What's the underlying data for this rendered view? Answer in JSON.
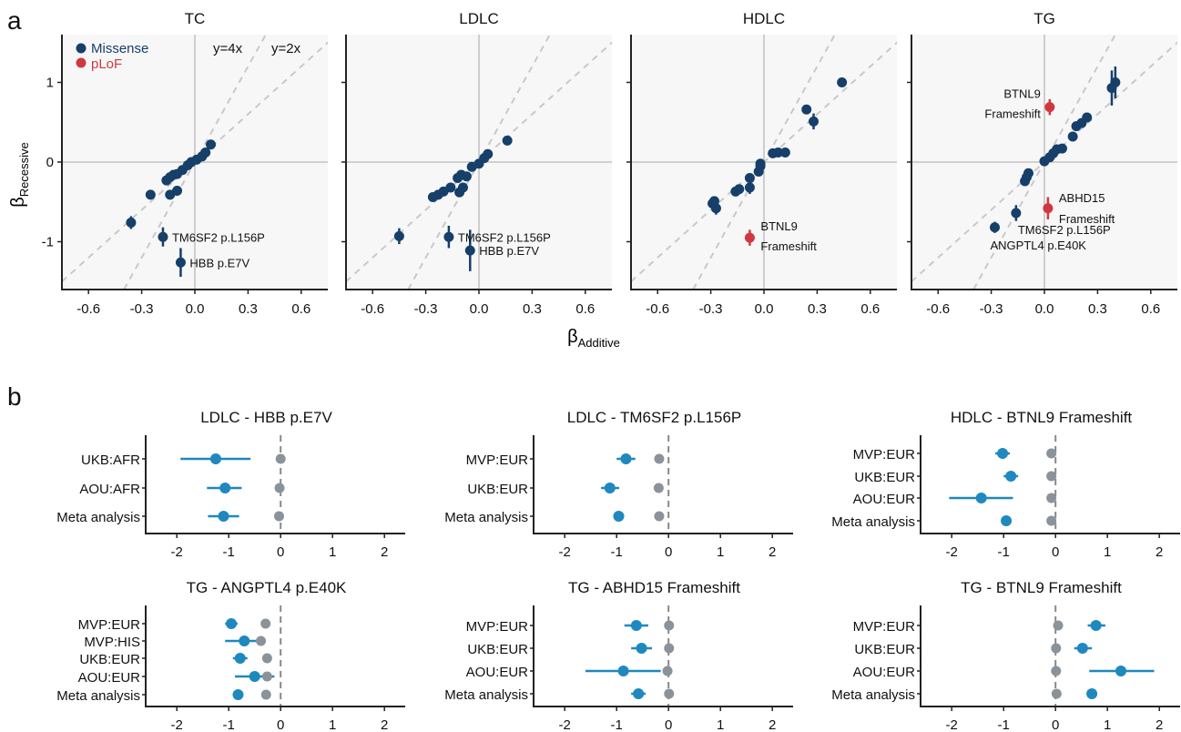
{
  "figure": {
    "panel_a_letter": "a",
    "panel_b_letter": "b",
    "x_label_main": "β",
    "x_label_sub": "Additive",
    "y_label_main": "β",
    "y_label_sub": "Recessive",
    "legend": {
      "items": [
        {
          "label": "Missense",
          "color": "#163f6a"
        },
        {
          "label": "pLoF",
          "color": "#d0383f"
        }
      ],
      "reference_lines": [
        "y=4x",
        "y=2x"
      ]
    }
  },
  "chart_data": [
    {
      "type": "scatter",
      "title": "TC",
      "xlim": [
        -0.75,
        0.75
      ],
      "ylim": [
        -1.6,
        1.6
      ],
      "xticks": [
        -0.6,
        -0.3,
        0.0,
        0.3,
        0.6
      ],
      "xtick_labels": [
        "-0.6",
        "-0.3",
        "0.0",
        "0.3",
        "0.6"
      ],
      "yticks": [
        -1,
        0,
        1
      ],
      "ytick_labels": [
        "-1",
        "0",
        "1"
      ],
      "reference_lines": [
        {
          "label": "y=4x",
          "slope": 4
        },
        {
          "label": "y=2x",
          "slope": 2
        }
      ],
      "points": [
        {
          "x": -0.36,
          "y": -0.76,
          "err": 0.08,
          "class": "Missense"
        },
        {
          "x": -0.18,
          "y": -0.94,
          "err": 0.12,
          "class": "Missense",
          "label": "TM6SF2 p.L156P"
        },
        {
          "x": -0.08,
          "y": -1.26,
          "err": 0.18,
          "class": "Missense",
          "label": "HBB p.E7V"
        },
        {
          "x": -0.25,
          "y": -0.41,
          "err": 0.04,
          "class": "Missense"
        },
        {
          "x": -0.14,
          "y": -0.41,
          "err": 0.06,
          "class": "Missense"
        },
        {
          "x": -0.1,
          "y": -0.36,
          "err": 0.05,
          "class": "Missense"
        },
        {
          "x": -0.16,
          "y": -0.23,
          "err": 0.04,
          "class": "Missense"
        },
        {
          "x": -0.14,
          "y": -0.19,
          "err": 0.04,
          "class": "Missense"
        },
        {
          "x": -0.12,
          "y": -0.16,
          "err": 0.04,
          "class": "Missense"
        },
        {
          "x": -0.1,
          "y": -0.15,
          "err": 0.04,
          "class": "Missense"
        },
        {
          "x": -0.07,
          "y": -0.1,
          "err": 0.03,
          "class": "Missense"
        },
        {
          "x": -0.04,
          "y": -0.04,
          "err": 0.03,
          "class": "Missense"
        },
        {
          "x": -0.02,
          "y": 0.0,
          "err": 0.02,
          "class": "Missense"
        },
        {
          "x": 0.01,
          "y": 0.03,
          "err": 0.02,
          "class": "Missense"
        },
        {
          "x": 0.04,
          "y": 0.07,
          "err": 0.03,
          "class": "Missense"
        },
        {
          "x": 0.06,
          "y": 0.12,
          "err": 0.04,
          "class": "Missense"
        },
        {
          "x": 0.09,
          "y": 0.22,
          "err": 0.04,
          "class": "Missense"
        }
      ]
    },
    {
      "type": "scatter",
      "title": "LDLC",
      "xlim": [
        -0.75,
        0.75
      ],
      "ylim": [
        -1.6,
        1.6
      ],
      "xticks": [
        -0.6,
        -0.3,
        0.0,
        0.3,
        0.6
      ],
      "xtick_labels": [
        "-0.6",
        "-0.3",
        "0.0",
        "0.3",
        "0.6"
      ],
      "yticks": [
        -1,
        0,
        1
      ],
      "ytick_labels": [
        "-1",
        "0",
        "1"
      ],
      "reference_lines": [
        {
          "slope": 4
        },
        {
          "slope": 2
        }
      ],
      "points": [
        {
          "x": -0.45,
          "y": -0.93,
          "err": 0.1,
          "class": "Missense"
        },
        {
          "x": -0.17,
          "y": -0.94,
          "err": 0.14,
          "class": "Missense",
          "label": "TM6SF2 p.L156P"
        },
        {
          "x": -0.05,
          "y": -1.11,
          "err": 0.26,
          "class": "Missense",
          "label": "HBB p.E7V"
        },
        {
          "x": -0.26,
          "y": -0.44,
          "err": 0.04,
          "class": "Missense"
        },
        {
          "x": -0.23,
          "y": -0.41,
          "err": 0.04,
          "class": "Missense"
        },
        {
          "x": -0.2,
          "y": -0.37,
          "err": 0.04,
          "class": "Missense"
        },
        {
          "x": -0.16,
          "y": -0.32,
          "err": 0.05,
          "class": "Missense"
        },
        {
          "x": -0.11,
          "y": -0.38,
          "err": 0.06,
          "class": "Missense"
        },
        {
          "x": -0.09,
          "y": -0.32,
          "err": 0.05,
          "class": "Missense"
        },
        {
          "x": -0.12,
          "y": -0.2,
          "err": 0.04,
          "class": "Missense"
        },
        {
          "x": -0.1,
          "y": -0.16,
          "err": 0.04,
          "class": "Missense"
        },
        {
          "x": -0.07,
          "y": -0.18,
          "err": 0.04,
          "class": "Missense"
        },
        {
          "x": -0.04,
          "y": -0.06,
          "err": 0.03,
          "class": "Missense"
        },
        {
          "x": 0.0,
          "y": -0.02,
          "err": 0.03,
          "class": "Missense"
        },
        {
          "x": 0.03,
          "y": 0.05,
          "err": 0.03,
          "class": "Missense"
        },
        {
          "x": 0.05,
          "y": 0.1,
          "err": 0.03,
          "class": "Missense"
        },
        {
          "x": 0.16,
          "y": 0.27,
          "err": 0.06,
          "class": "Missense"
        }
      ]
    },
    {
      "type": "scatter",
      "title": "HDLC",
      "xlim": [
        -0.75,
        0.75
      ],
      "ylim": [
        -1.6,
        1.6
      ],
      "xticks": [
        -0.6,
        -0.3,
        0.0,
        0.3,
        0.6
      ],
      "xtick_labels": [
        "-0.6",
        "-0.3",
        "0.0",
        "0.3",
        "0.6"
      ],
      "yticks": [
        -1,
        0,
        1
      ],
      "ytick_labels": [
        "-1",
        "0",
        "1"
      ],
      "reference_lines": [
        {
          "slope": 4
        },
        {
          "slope": 2
        }
      ],
      "points": [
        {
          "x": -0.08,
          "y": -0.95,
          "err": 0.1,
          "class": "pLoF",
          "label": "BTNL9 Frameshift"
        },
        {
          "x": -0.29,
          "y": -0.52,
          "err": 0.06,
          "class": "Missense"
        },
        {
          "x": -0.27,
          "y": -0.58,
          "err": 0.08,
          "class": "Missense"
        },
        {
          "x": -0.28,
          "y": -0.49,
          "err": 0.05,
          "class": "Missense"
        },
        {
          "x": -0.16,
          "y": -0.37,
          "err": 0.05,
          "class": "Missense"
        },
        {
          "x": -0.14,
          "y": -0.34,
          "err": 0.05,
          "class": "Missense"
        },
        {
          "x": -0.08,
          "y": -0.32,
          "err": 0.08,
          "class": "Missense"
        },
        {
          "x": -0.08,
          "y": -0.2,
          "err": 0.04,
          "class": "Missense"
        },
        {
          "x": -0.03,
          "y": -0.12,
          "err": 0.05,
          "class": "Missense"
        },
        {
          "x": -0.02,
          "y": -0.05,
          "err": 0.03,
          "class": "Missense"
        },
        {
          "x": -0.02,
          "y": -0.02,
          "err": 0.03,
          "class": "Missense"
        },
        {
          "x": 0.05,
          "y": 0.11,
          "err": 0.03,
          "class": "Missense"
        },
        {
          "x": 0.08,
          "y": 0.12,
          "err": 0.03,
          "class": "Missense"
        },
        {
          "x": 0.12,
          "y": 0.12,
          "err": 0.03,
          "class": "Missense"
        },
        {
          "x": 0.24,
          "y": 0.66,
          "err": 0.06,
          "class": "Missense"
        },
        {
          "x": 0.28,
          "y": 0.51,
          "err": 0.1,
          "class": "Missense"
        },
        {
          "x": 0.44,
          "y": 1.0,
          "err": 0.04,
          "class": "Missense"
        }
      ]
    },
    {
      "type": "scatter",
      "title": "TG",
      "xlim": [
        -0.75,
        0.75
      ],
      "ylim": [
        -1.6,
        1.6
      ],
      "xticks": [
        -0.6,
        -0.3,
        0.0,
        0.3,
        0.6
      ],
      "xtick_labels": [
        "-0.6",
        "-0.3",
        "0.0",
        "0.3",
        "0.6"
      ],
      "yticks": [
        -1,
        0,
        1
      ],
      "ytick_labels": [
        "-1",
        "0",
        "1"
      ],
      "reference_lines": [
        {
          "slope": 4
        },
        {
          "slope": 2
        }
      ],
      "points": [
        {
          "x": 0.03,
          "y": 0.69,
          "err": 0.1,
          "class": "pLoF",
          "label": "BTNL9 Frameshift"
        },
        {
          "x": 0.02,
          "y": -0.58,
          "err": 0.14,
          "class": "pLoF",
          "label": "ABHD15 Frameshift"
        },
        {
          "x": -0.16,
          "y": -0.64,
          "err": 0.1,
          "class": "Missense",
          "label": "TM6SF2 p.L156P"
        },
        {
          "x": -0.28,
          "y": -0.82,
          "err": 0.07,
          "class": "Missense",
          "label": "ANGPTL4 p.E40K"
        },
        {
          "x": -0.11,
          "y": -0.24,
          "err": 0.05,
          "class": "Missense"
        },
        {
          "x": -0.1,
          "y": -0.19,
          "err": 0.05,
          "class": "Missense"
        },
        {
          "x": -0.09,
          "y": -0.14,
          "err": 0.05,
          "class": "Missense"
        },
        {
          "x": 0.0,
          "y": 0.01,
          "err": 0.03,
          "class": "Missense"
        },
        {
          "x": 0.03,
          "y": 0.06,
          "err": 0.03,
          "class": "Missense"
        },
        {
          "x": 0.05,
          "y": 0.11,
          "err": 0.03,
          "class": "Missense"
        },
        {
          "x": 0.07,
          "y": 0.16,
          "err": 0.04,
          "class": "Missense"
        },
        {
          "x": 0.1,
          "y": 0.17,
          "err": 0.04,
          "class": "Missense"
        },
        {
          "x": 0.16,
          "y": 0.32,
          "err": 0.05,
          "class": "Missense"
        },
        {
          "x": 0.18,
          "y": 0.45,
          "err": 0.05,
          "class": "Missense"
        },
        {
          "x": 0.21,
          "y": 0.49,
          "err": 0.05,
          "class": "Missense"
        },
        {
          "x": 0.24,
          "y": 0.56,
          "err": 0.05,
          "class": "Missense"
        },
        {
          "x": 0.38,
          "y": 0.93,
          "err": 0.22,
          "class": "Missense"
        },
        {
          "x": 0.4,
          "y": 1.0,
          "err": 0.2,
          "class": "Missense"
        }
      ]
    },
    {
      "type": "forest",
      "title": "LDLC - HBB p.E7V",
      "xlim": [
        -2.6,
        2.4
      ],
      "xticks": [
        -2,
        -1,
        0,
        1,
        2
      ],
      "xtick_labels": [
        "-2",
        "-1",
        "0",
        "1",
        "2"
      ],
      "rows": [
        {
          "label": "UKB:AFR",
          "recessive": -1.25,
          "lo": -1.93,
          "hi": -0.58,
          "additive": 0.0
        },
        {
          "label": "AOU:AFR",
          "recessive": -1.07,
          "lo": -1.42,
          "hi": -0.75,
          "additive": -0.02
        },
        {
          "label": "Meta analysis",
          "recessive": -1.1,
          "lo": -1.4,
          "hi": -0.8,
          "additive": -0.03
        }
      ]
    },
    {
      "type": "forest",
      "title": "LDLC - TM6SF2 p.L156P",
      "xlim": [
        -2.6,
        2.4
      ],
      "xticks": [
        -2,
        -1,
        0,
        1,
        2
      ],
      "xtick_labels": [
        "-2",
        "-1",
        "0",
        "1",
        "2"
      ],
      "rows": [
        {
          "label": "MVP:EUR",
          "recessive": -0.82,
          "lo": -1.0,
          "hi": -0.64,
          "additive": -0.18
        },
        {
          "label": "UKB:EUR",
          "recessive": -1.13,
          "lo": -1.3,
          "hi": -0.95,
          "additive": -0.19
        },
        {
          "label": "Meta analysis",
          "recessive": -0.96,
          "lo": -1.06,
          "hi": -0.86,
          "additive": -0.18
        }
      ]
    },
    {
      "type": "forest",
      "title": "HDLC - BTNL9 Frameshift",
      "xlim": [
        -2.6,
        2.4
      ],
      "xticks": [
        -2,
        -1,
        0,
        1,
        2
      ],
      "xtick_labels": [
        "-2",
        "-1",
        "0",
        "1",
        "2"
      ],
      "rows": [
        {
          "label": "MVP:EUR",
          "recessive": -1.02,
          "lo": -1.16,
          "hi": -0.88,
          "additive": -0.08
        },
        {
          "label": "UKB:EUR",
          "recessive": -0.86,
          "lo": -1.0,
          "hi": -0.72,
          "additive": -0.08
        },
        {
          "label": "AOU:EUR",
          "recessive": -1.43,
          "lo": -2.05,
          "hi": -0.82,
          "additive": -0.08
        },
        {
          "label": "Meta analysis",
          "recessive": -0.95,
          "lo": -1.05,
          "hi": -0.85,
          "additive": -0.08
        }
      ]
    },
    {
      "type": "forest",
      "title": "TG - ANGPTL4 p.E40K",
      "xlim": [
        -2.6,
        2.4
      ],
      "xticks": [
        -2,
        -1,
        0,
        1,
        2
      ],
      "xtick_labels": [
        "-2",
        "-1",
        "0",
        "1",
        "2"
      ],
      "rows": [
        {
          "label": "MVP:EUR",
          "recessive": -0.95,
          "lo": -1.07,
          "hi": -0.83,
          "additive": -0.29
        },
        {
          "label": "MVP:HIS",
          "recessive": -0.7,
          "lo": -1.07,
          "hi": -0.33,
          "additive": -0.38
        },
        {
          "label": "UKB:EUR",
          "recessive": -0.78,
          "lo": -0.92,
          "hi": -0.64,
          "additive": -0.26
        },
        {
          "label": "AOU:EUR",
          "recessive": -0.5,
          "lo": -0.88,
          "hi": -0.12,
          "additive": -0.26
        },
        {
          "label": "Meta analysis",
          "recessive": -0.82,
          "lo": -0.92,
          "hi": -0.72,
          "additive": -0.28
        }
      ]
    },
    {
      "type": "forest",
      "title": "TG - ABHD15 Frameshift",
      "xlim": [
        -2.6,
        2.4
      ],
      "xticks": [
        -2,
        -1,
        0,
        1,
        2
      ],
      "xtick_labels": [
        "-2",
        "-1",
        "0",
        "1",
        "2"
      ],
      "rows": [
        {
          "label": "MVP:EUR",
          "recessive": -0.62,
          "lo": -0.85,
          "hi": -0.39,
          "additive": 0.01
        },
        {
          "label": "UKB:EUR",
          "recessive": -0.52,
          "lo": -0.72,
          "hi": -0.32,
          "additive": 0.01
        },
        {
          "label": "AOU:EUR",
          "recessive": -0.87,
          "lo": -1.6,
          "hi": -0.15,
          "additive": -0.02
        },
        {
          "label": "Meta analysis",
          "recessive": -0.58,
          "lo": -0.72,
          "hi": -0.44,
          "additive": 0.01
        }
      ]
    },
    {
      "type": "forest",
      "title": "TG - BTNL9 Frameshift",
      "xlim": [
        -2.6,
        2.4
      ],
      "xticks": [
        -2,
        -1,
        0,
        1,
        2
      ],
      "xtick_labels": [
        "-2",
        "-1",
        "0",
        "1",
        "2"
      ],
      "rows": [
        {
          "label": "MVP:EUR",
          "recessive": 0.78,
          "lo": 0.62,
          "hi": 0.96,
          "additive": 0.05
        },
        {
          "label": "UKB:EUR",
          "recessive": 0.52,
          "lo": 0.36,
          "hi": 0.7,
          "additive": 0.01
        },
        {
          "label": "AOU:EUR",
          "recessive": 1.26,
          "lo": 0.65,
          "hi": 1.9,
          "additive": 0.01
        },
        {
          "label": "Meta analysis",
          "recessive": 0.7,
          "lo": 0.6,
          "hi": 0.8,
          "additive": 0.02
        }
      ]
    }
  ],
  "colors": {
    "missense": "#163f6a",
    "plof": "#d0383f",
    "recessive": "#1f88be",
    "additive": "#8a939a",
    "refline": "#c8c8c8",
    "panel_bg": "#f7f7f7",
    "axis": "#222222"
  }
}
